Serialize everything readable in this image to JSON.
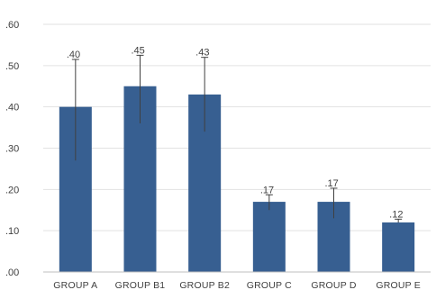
{
  "chart_data": {
    "type": "bar",
    "categories": [
      "GROUP A",
      "GROUP B1",
      "GROUP B2",
      "GROUP C",
      "GROUP D",
      "GROUP E"
    ],
    "values": [
      0.4,
      0.45,
      0.43,
      0.17,
      0.17,
      0.12
    ],
    "value_labels": [
      ".40",
      ".45",
      ".43",
      ".17",
      ".17",
      ".12"
    ],
    "error_upper": [
      0.515,
      0.525,
      0.52,
      0.187,
      0.203,
      0.128
    ],
    "error_lower": [
      0.27,
      0.36,
      0.34,
      0.15,
      0.13,
      0.12
    ],
    "yticks": [
      0.0,
      0.1,
      0.2,
      0.3,
      0.4,
      0.5,
      0.6
    ],
    "ytick_labels": [
      ".00",
      ".10",
      ".20",
      ".30",
      ".40",
      ".50",
      ".60"
    ],
    "ylim": [
      0,
      0.6
    ],
    "grid": true,
    "legend": "none",
    "bar_color": "#375F91",
    "title": "",
    "xlabel": "",
    "ylabel": ""
  }
}
